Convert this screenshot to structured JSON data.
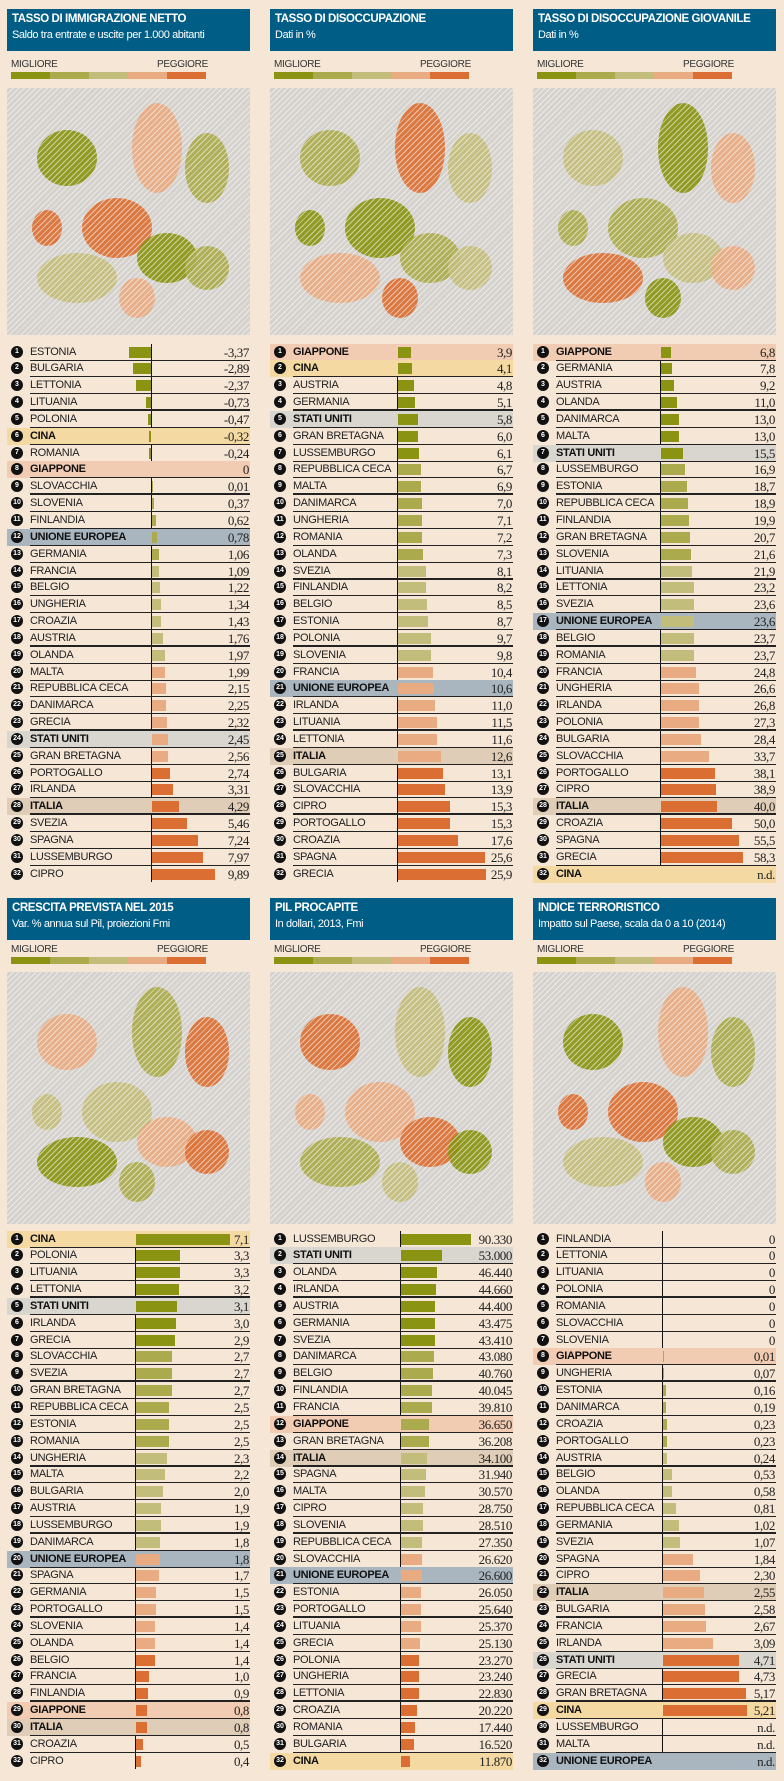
{
  "legend": {
    "best": "MIGLIORE",
    "worst": "PEGGIORE"
  },
  "palette": [
    "#8a9312",
    "#abab4e",
    "#c3bd7c",
    "#e8ab82",
    "#db6f33"
  ],
  "highlight_colors": {
    "GIAPPONE": "#f1cbb2",
    "CINA": "#f5d9a2",
    "STATI UNITI": "#d9d5cf",
    "UNIONE EUROPEA": "#a9b6bf",
    "ITALIA": "#e0cdb8"
  },
  "header_color": "#005e86",
  "chart_data": [
    {
      "type": "bar",
      "title": "TASSO DI IMMIGRAZIONE NETTO",
      "subtitle": "Saldo tra entrate e uscite per 1.000 abitanti",
      "rows": [
        [
          "ESTONIA",
          "-3,37"
        ],
        [
          "BULGARIA",
          "-2,89"
        ],
        [
          "LETTONIA",
          "-2,37"
        ],
        [
          "LITUANIA",
          "-0,73"
        ],
        [
          "POLONIA",
          "-0,47"
        ],
        [
          "CINA",
          "-0,32"
        ],
        [
          "ROMANIA",
          "-0,24"
        ],
        [
          "GIAPPONE",
          "0"
        ],
        [
          "SLOVACCHIA",
          "0,01"
        ],
        [
          "SLOVENIA",
          "0,37"
        ],
        [
          "FINLANDIA",
          "0,62"
        ],
        [
          "UNIONE EUROPEA",
          "0,78"
        ],
        [
          "GERMANIA",
          "1,06"
        ],
        [
          "FRANCIA",
          "1,09"
        ],
        [
          "BELGIO",
          "1,22"
        ],
        [
          "UNGHERIA",
          "1,34"
        ],
        [
          "CROAZIA",
          "1,43"
        ],
        [
          "AUSTRIA",
          "1,76"
        ],
        [
          "OLANDA",
          "1,97"
        ],
        [
          "MALTA",
          "1,99"
        ],
        [
          "REPUBBLICA CECA",
          "2,15"
        ],
        [
          "DANIMARCA",
          "2,25"
        ],
        [
          "GRECIA",
          "2,32"
        ],
        [
          "STATI UNITI",
          "2,45"
        ],
        [
          "GRAN BRETAGNA",
          "2,56"
        ],
        [
          "PORTOGALLO",
          "2,74"
        ],
        [
          "IRLANDA",
          "3,31"
        ],
        [
          "ITALIA",
          "4,29"
        ],
        [
          "SVEZIA",
          "5,46"
        ],
        [
          "SPAGNA",
          "7,24"
        ],
        [
          "LUSSEMBURGO",
          "7,97"
        ],
        [
          "CIPRO",
          "9,89"
        ]
      ]
    },
    {
      "type": "bar",
      "title": "TASSO DI DISOCCUPAZIONE",
      "subtitle": "Dati in %",
      "rows": [
        [
          "GIAPPONE",
          "3,9"
        ],
        [
          "CINA",
          "4,1"
        ],
        [
          "AUSTRIA",
          "4,8"
        ],
        [
          "GERMANIA",
          "5,1"
        ],
        [
          "STATI UNITI",
          "5,8"
        ],
        [
          "GRAN BRETAGNA",
          "6,0"
        ],
        [
          "LUSSEMBURGO",
          "6,1"
        ],
        [
          "REPUBBLICA CECA",
          "6,7"
        ],
        [
          "MALTA",
          "6,9"
        ],
        [
          "DANIMARCA",
          "7,0"
        ],
        [
          "UNGHERIA",
          "7,1"
        ],
        [
          "ROMANIA",
          "7,2"
        ],
        [
          "OLANDA",
          "7,3"
        ],
        [
          "SVEZIA",
          "8,1"
        ],
        [
          "FINLANDIA",
          "8,2"
        ],
        [
          "BELGIO",
          "8,5"
        ],
        [
          "ESTONIA",
          "8,7"
        ],
        [
          "POLONIA",
          "9,7"
        ],
        [
          "SLOVENIA",
          "9,8"
        ],
        [
          "FRANCIA",
          "10,4"
        ],
        [
          "UNIONE EUROPEA",
          "10,6"
        ],
        [
          "IRLANDA",
          "11,0"
        ],
        [
          "LITUANIA",
          "11,5"
        ],
        [
          "LETTONIA",
          "11,6"
        ],
        [
          "ITALIA",
          "12,6"
        ],
        [
          "BULGARIA",
          "13,1"
        ],
        [
          "SLOVACCHIA",
          "13,9"
        ],
        [
          "CIPRO",
          "15,3"
        ],
        [
          "PORTOGALLO",
          "15,3"
        ],
        [
          "CROAZIA",
          "17,6"
        ],
        [
          "SPAGNA",
          "25,6"
        ],
        [
          "GRECIA",
          "25,9"
        ]
      ]
    },
    {
      "type": "bar",
      "title": "TASSO DI DISOCCUPAZIONE GIOVANILE",
      "subtitle": "Dati in %",
      "rows": [
        [
          "GIAPPONE",
          "6,8"
        ],
        [
          "GERMANIA",
          "7,8"
        ],
        [
          "AUSTRIA",
          "9,2"
        ],
        [
          "OLANDA",
          "11,0"
        ],
        [
          "DANIMARCA",
          "13,0"
        ],
        [
          "MALTA",
          "13,0"
        ],
        [
          "STATI UNITI",
          "15,5"
        ],
        [
          "LUSSEMBURGO",
          "16,9"
        ],
        [
          "ESTONIA",
          "18,7"
        ],
        [
          "REPUBBLICA CECA",
          "18,9"
        ],
        [
          "FINLANDIA",
          "19,9"
        ],
        [
          "GRAN BRETAGNA",
          "20,7"
        ],
        [
          "SLOVENIA",
          "21,6"
        ],
        [
          "LITUANIA",
          "21,9"
        ],
        [
          "LETTONIA",
          "23,2"
        ],
        [
          "SVEZIA",
          "23,6"
        ],
        [
          "UNIONE EUROPEA",
          "23,6"
        ],
        [
          "BELGIO",
          "23,7"
        ],
        [
          "ROMANIA",
          "23,7"
        ],
        [
          "FRANCIA",
          "24,8"
        ],
        [
          "UNGHERIA",
          "26,6"
        ],
        [
          "IRLANDA",
          "26,8"
        ],
        [
          "POLONIA",
          "27,3"
        ],
        [
          "BULGARIA",
          "28,4"
        ],
        [
          "SLOVACCHIA",
          "33,7"
        ],
        [
          "PORTOGALLO",
          "38,1"
        ],
        [
          "CIPRO",
          "38,9"
        ],
        [
          "ITALIA",
          "40,0"
        ],
        [
          "CROAZIA",
          "50,0"
        ],
        [
          "SPAGNA",
          "55,5"
        ],
        [
          "GRECIA",
          "58,3"
        ],
        [
          "CINA",
          "n.d."
        ]
      ]
    },
    {
      "type": "bar",
      "title": "CRESCITA PREVISTA NEL 2015",
      "subtitle": "Var. % annua sul Pil, proiezioni Fmi",
      "rows": [
        [
          "CINA",
          "7,1"
        ],
        [
          "POLONIA",
          "3,3"
        ],
        [
          "LITUANIA",
          "3,3"
        ],
        [
          "LETTONIA",
          "3,2"
        ],
        [
          "STATI UNITI",
          "3,1"
        ],
        [
          "IRLANDA",
          "3,0"
        ],
        [
          "GRECIA",
          "2,9"
        ],
        [
          "SLOVACCHIA",
          "2,7"
        ],
        [
          "SVEZIA",
          "2,7"
        ],
        [
          "GRAN BRETAGNA",
          "2,7"
        ],
        [
          "REPUBBLICA CECA",
          "2,5"
        ],
        [
          "ESTONIA",
          "2,5"
        ],
        [
          "ROMANIA",
          "2,5"
        ],
        [
          "UNGHERIA",
          "2,3"
        ],
        [
          "MALTA",
          "2,2"
        ],
        [
          "BULGARIA",
          "2,0"
        ],
        [
          "AUSTRIA",
          "1,9"
        ],
        [
          "LUSSEMBURGO",
          "1,9"
        ],
        [
          "DANIMARCA",
          "1,8"
        ],
        [
          "UNIONE EUROPEA",
          "1,8"
        ],
        [
          "SPAGNA",
          "1,7"
        ],
        [
          "GERMANIA",
          "1,5"
        ],
        [
          "PORTOGALLO",
          "1,5"
        ],
        [
          "SLOVENIA",
          "1,4"
        ],
        [
          "OLANDA",
          "1,4"
        ],
        [
          "BELGIO",
          "1,4"
        ],
        [
          "FRANCIA",
          "1,0"
        ],
        [
          "FINLANDIA",
          "0,9"
        ],
        [
          "GIAPPONE",
          "0,8"
        ],
        [
          "ITALIA",
          "0,8"
        ],
        [
          "CROAZIA",
          "0,5"
        ],
        [
          "CIPRO",
          "0,4"
        ]
      ]
    },
    {
      "type": "bar",
      "title": "PIL PROCAPITE",
      "subtitle": "In dollari, 2013, Fmi",
      "rows": [
        [
          "LUSSEMBURGO",
          "90.330"
        ],
        [
          "STATI UNITI",
          "53.000"
        ],
        [
          "OLANDA",
          "46.440"
        ],
        [
          "IRLANDA",
          "44.660"
        ],
        [
          "AUSTRIA",
          "44.400"
        ],
        [
          "GERMANIA",
          "43.475"
        ],
        [
          "SVEZIA",
          "43.410"
        ],
        [
          "DANIMARCA",
          "43.080"
        ],
        [
          "BELGIO",
          "40.760"
        ],
        [
          "FINLANDIA",
          "40.045"
        ],
        [
          "FRANCIA",
          "39.810"
        ],
        [
          "GIAPPONE",
          "36.650"
        ],
        [
          "GRAN BRETAGNA",
          "36.208"
        ],
        [
          "ITALIA",
          "34.100"
        ],
        [
          "SPAGNA",
          "31.940"
        ],
        [
          "MALTA",
          "30.570"
        ],
        [
          "CIPRO",
          "28.750"
        ],
        [
          "SLOVENIA",
          "28.510"
        ],
        [
          "REPUBBLICA CECA",
          "27.350"
        ],
        [
          "SLOVACCHIA",
          "26.620"
        ],
        [
          "UNIONE EUROPEA",
          "26.600"
        ],
        [
          "ESTONIA",
          "26.050"
        ],
        [
          "PORTOGALLO",
          "25.640"
        ],
        [
          "LITUANIA",
          "25.370"
        ],
        [
          "GRECIA",
          "25.130"
        ],
        [
          "POLONIA",
          "23.270"
        ],
        [
          "UNGHERIA",
          "23.240"
        ],
        [
          "LETTONIA",
          "22.830"
        ],
        [
          "CROAZIA",
          "20.220"
        ],
        [
          "ROMANIA",
          "17.440"
        ],
        [
          "BULGARIA",
          "16.520"
        ],
        [
          "CINA",
          "11.870"
        ]
      ]
    },
    {
      "type": "bar",
      "title": "INDICE TERRORISTICO",
      "subtitle": "Impatto sul Paese, scala da 0 a 10 (2014)",
      "rows": [
        [
          "FINLANDIA",
          "0"
        ],
        [
          "LETTONIA",
          "0"
        ],
        [
          "LITUANIA",
          "0"
        ],
        [
          "POLONIA",
          "0"
        ],
        [
          "ROMANIA",
          "0"
        ],
        [
          "SLOVACCHIA",
          "0"
        ],
        [
          "SLOVENIA",
          "0"
        ],
        [
          "GIAPPONE",
          "0,01"
        ],
        [
          "UNGHERIA",
          "0,07"
        ],
        [
          "ESTONIA",
          "0,16"
        ],
        [
          "DANIMARCA",
          "0,19"
        ],
        [
          "CROAZIA",
          "0,23"
        ],
        [
          "PORTOGALLO",
          "0,23"
        ],
        [
          "AUSTRIA",
          "0,24"
        ],
        [
          "BELGIO",
          "0,53"
        ],
        [
          "OLANDA",
          "0,58"
        ],
        [
          "REPUBBLICA CECA",
          "0,81"
        ],
        [
          "GERMANIA",
          "1,02"
        ],
        [
          "SVEZIA",
          "1,07"
        ],
        [
          "SPAGNA",
          "1,84"
        ],
        [
          "CIPRO",
          "2,30"
        ],
        [
          "ITALIA",
          "2,55"
        ],
        [
          "BULGARIA",
          "2,58"
        ],
        [
          "FRANCIA",
          "2,67"
        ],
        [
          "IRLANDA",
          "3,09"
        ],
        [
          "STATI UNITI",
          "4,71"
        ],
        [
          "GRECIA",
          "4,73"
        ],
        [
          "GRAN BRETAGNA",
          "5,17"
        ],
        [
          "CINA",
          "5,21"
        ],
        [
          "LUSSEMBURGO",
          "n.d."
        ],
        [
          "MALTA",
          "n.d."
        ],
        [
          "UNIONE EUROPEA",
          "n.d."
        ]
      ]
    }
  ]
}
